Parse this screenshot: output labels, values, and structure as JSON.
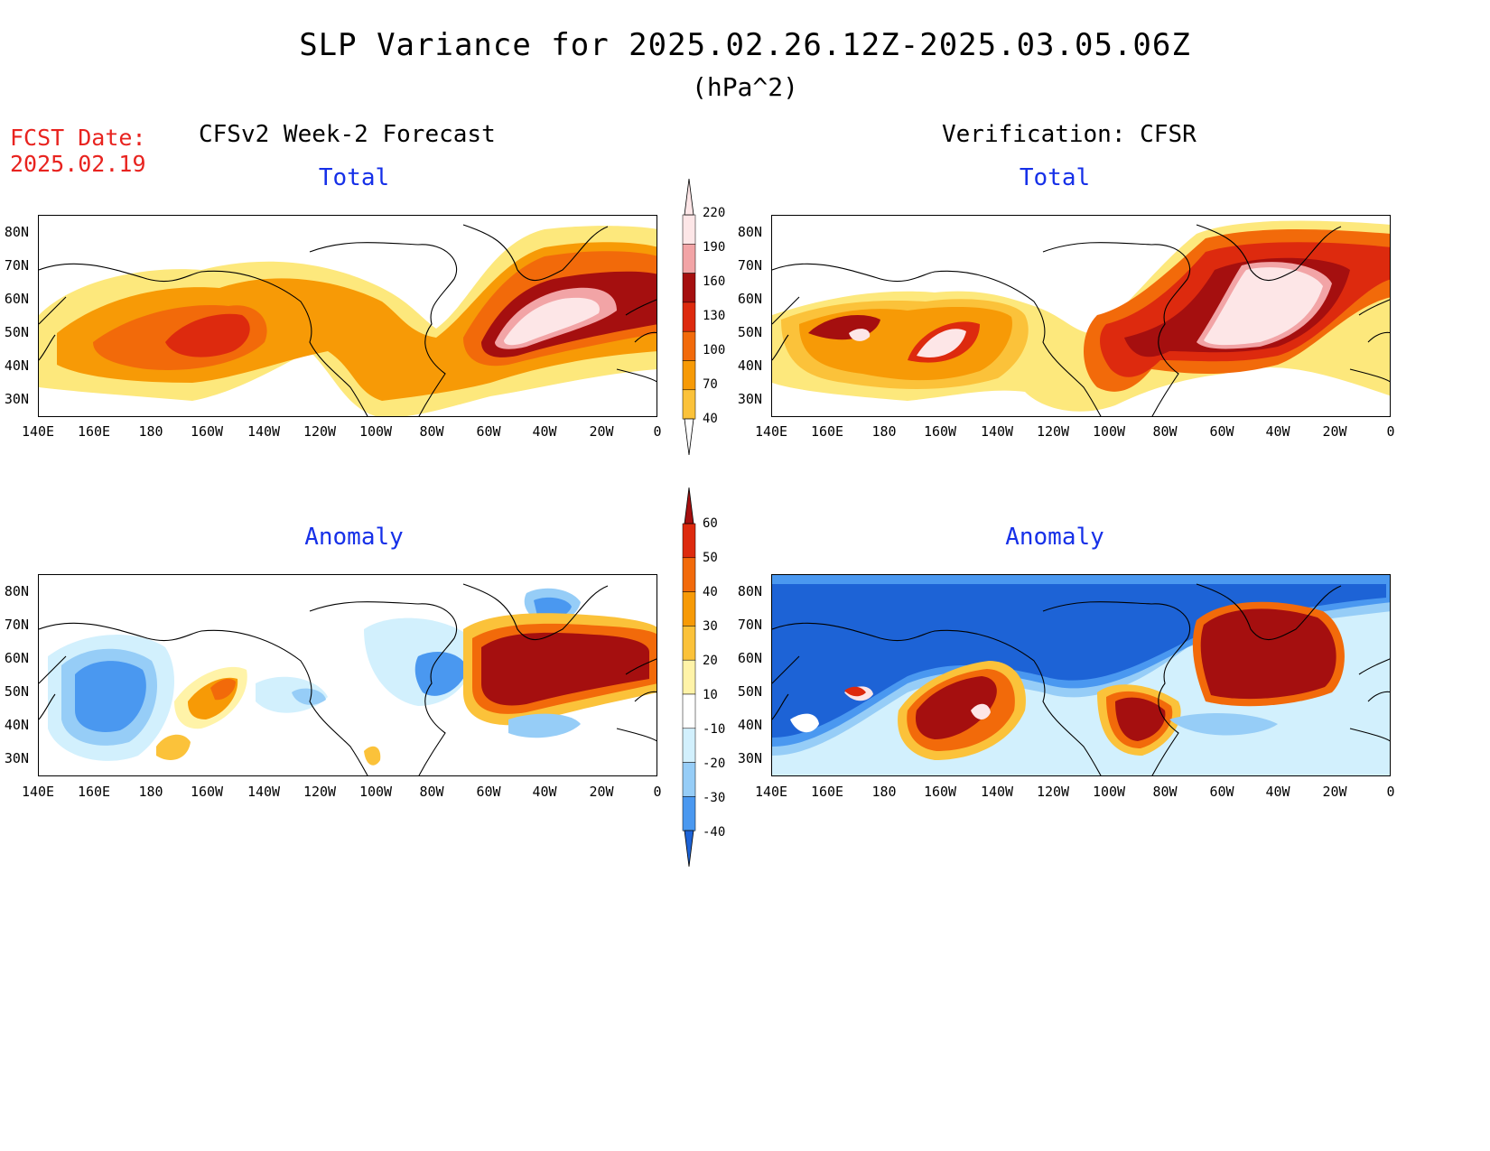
{
  "header": {
    "title": "SLP Variance for 2025.02.26.12Z-2025.03.05.06Z",
    "units": "(hPa^2)",
    "fcst_date_label": "FCST Date:",
    "fcst_date_value": "2025.02.19"
  },
  "panels": {
    "left_title": "CFSv2 Week-2 Forecast",
    "right_title": "Verification: CFSR",
    "total_label": "Total",
    "anomaly_label": "Anomaly"
  },
  "axes": {
    "lat_labels": [
      "80N",
      "70N",
      "60N",
      "50N",
      "40N",
      "30N"
    ],
    "lon_labels": [
      "140E",
      "160E",
      "180",
      "160W",
      "140W",
      "120W",
      "100W",
      "80W",
      "60W",
      "40W",
      "20W",
      "0"
    ]
  },
  "colorbars": {
    "total": {
      "levels": [
        "40",
        "70",
        "100",
        "130",
        "160",
        "190",
        "220"
      ],
      "colors": [
        "#fde87c",
        "#fbc23a",
        "#f79a06",
        "#f26a0a",
        "#dd2a0e",
        "#a50f0f",
        "#f2a4a6",
        "#fde6e7"
      ]
    },
    "anomaly": {
      "levels": [
        "60",
        "50",
        "40",
        "30",
        "20",
        "10",
        "-10",
        "-20",
        "-30",
        "-40"
      ],
      "colors": [
        "#a50f0f",
        "#dd2a0e",
        "#f26a0a",
        "#f79a06",
        "#fbc23a",
        "#fff3a8",
        "#ffffff",
        "#d2f0fd",
        "#96cdf7",
        "#4a98f0",
        "#1d63d6"
      ]
    }
  },
  "colors": {
    "title_red": "#e8231f",
    "subtitle_blue": "#1630e8"
  }
}
